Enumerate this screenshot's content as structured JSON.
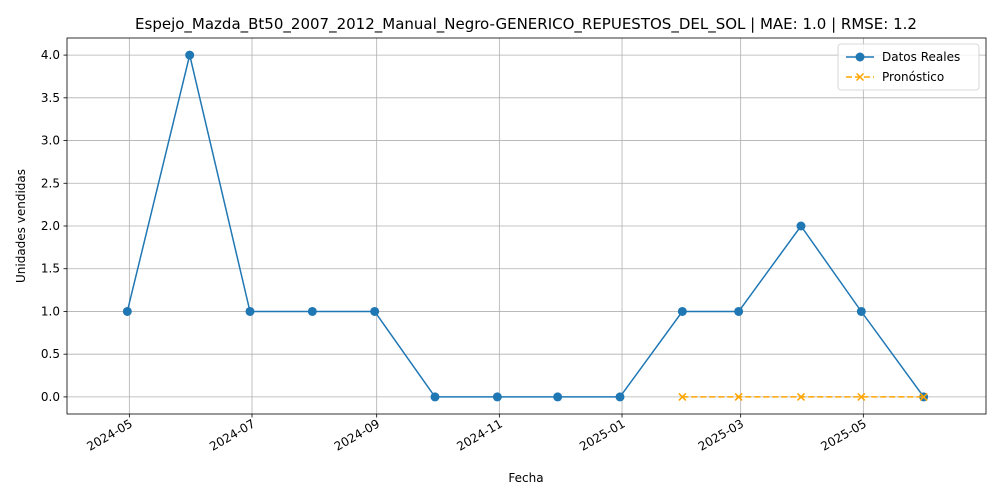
{
  "chart_data": {
    "type": "line",
    "title": "Espejo_Mazda_Bt50_2007_2012_Manual_Negro-GENERICO_REPUESTOS_DEL_SOL | MAE: 1.0 | RMSE: 1.2",
    "xlabel": "Fecha",
    "ylabel": "Unidades vendidas",
    "ylim": [
      -0.2,
      4.2
    ],
    "grid": true,
    "legend_position": "top-right",
    "x_ticks": [
      "2024-05",
      "2024-07",
      "2024-09",
      "2024-11",
      "2025-01",
      "2025-03",
      "2025-05"
    ],
    "y_ticks": [
      "0.0",
      "0.5",
      "1.0",
      "1.5",
      "2.0",
      "2.5",
      "3.0",
      "3.5",
      "4.0"
    ],
    "series": [
      {
        "name": "Datos Reales",
        "color": "#1f77b4",
        "marker": "circle",
        "linestyle": "solid",
        "x": [
          "2024-04-30",
          "2024-05-31",
          "2024-06-30",
          "2024-07-31",
          "2024-08-31",
          "2024-09-30",
          "2024-10-31",
          "2024-11-30",
          "2024-12-31",
          "2025-01-31",
          "2025-02-28",
          "2025-03-31",
          "2025-04-30",
          "2025-05-31"
        ],
        "values": [
          1,
          4,
          1,
          1,
          1,
          0,
          0,
          0,
          0,
          1,
          1,
          2,
          1,
          0
        ]
      },
      {
        "name": "Pronóstico",
        "color": "#ffa500",
        "marker": "x",
        "linestyle": "dashed",
        "x": [
          "2025-01-31",
          "2025-02-28",
          "2025-03-31",
          "2025-04-30",
          "2025-05-31"
        ],
        "values": [
          0,
          0,
          0,
          0,
          0
        ]
      }
    ]
  }
}
